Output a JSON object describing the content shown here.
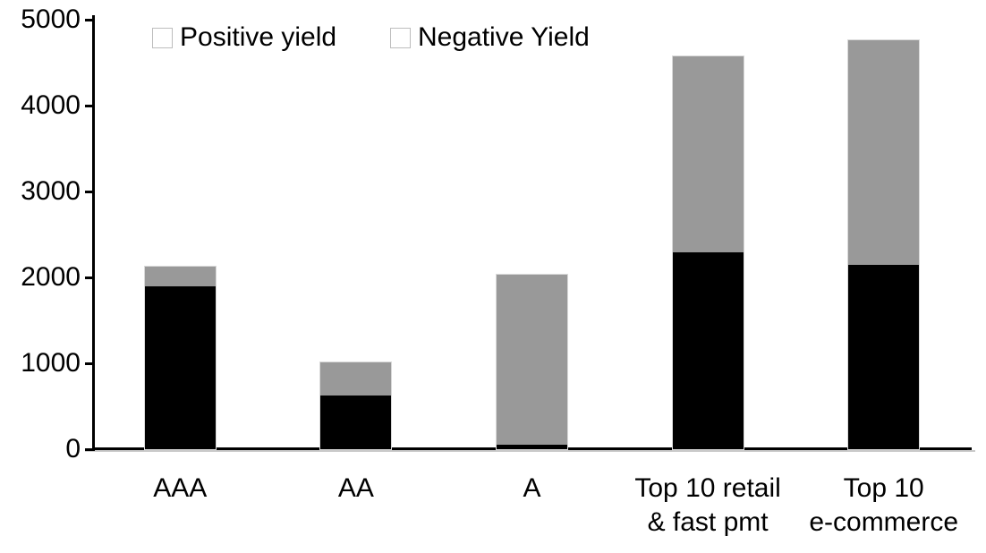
{
  "chart_data": {
    "type": "bar",
    "stacked": true,
    "title": "",
    "xlabel": "",
    "ylabel": "",
    "categories": [
      "AAA",
      "AA",
      "A",
      "Top 10 retail\n& fast pmt",
      "Top 10\ne-commerce"
    ],
    "series": [
      {
        "name": "Positive yield",
        "color": "#000000",
        "values": [
          1900,
          620,
          50,
          2290,
          2150
        ]
      },
      {
        "name": "Negative Yield",
        "color": "#999999",
        "values": [
          220,
          390,
          1980,
          2280,
          2610
        ]
      }
    ],
    "totals": [
      2120,
      1010,
      2030,
      4570,
      4760
    ],
    "ylim": [
      0,
      5000
    ],
    "yticks": [
      0,
      1000,
      2000,
      3000,
      4000,
      5000
    ],
    "grid": false,
    "legend_position": "top"
  }
}
